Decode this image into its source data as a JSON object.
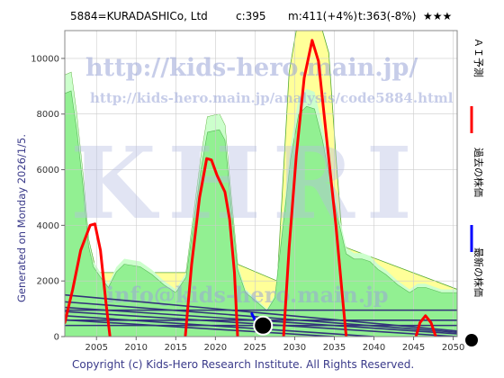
{
  "header": {
    "title": "5884=KURADASHICo,  Ltd",
    "current": "c:395",
    "mid": "m:411(+4%)",
    "target": "t:363(-8%)",
    "stars": "★★★"
  },
  "side_label": "Generated on Monday 2026/1/5.",
  "footer": "Copyright (c) Kids-Hero Research Institute. All Rights Reserved.",
  "watermarks": {
    "url_main": "http://kids-hero.main.jp/",
    "url_page": "http://kids-hero.main.jp/analysis/code5884.html",
    "brand": "KHRI",
    "email": "info@kids-hero.main.jp"
  },
  "legend": [
    {
      "label": "ＡＩ予測",
      "color": "#ff0000",
      "marker": "line"
    },
    {
      "label": "過去の株価",
      "color": "#0000ff",
      "marker": "line"
    },
    {
      "label": "最新の株価",
      "color": "#000000",
      "marker": "dot"
    }
  ],
  "colors": {
    "plot_bg": "#ffffff",
    "band_light": "#ccffcc",
    "band_green": "#88ee88",
    "band_yellow": "#ffff99",
    "trend_lines": "#33337a",
    "ai_line": "#ff0000",
    "past_line": "#0000ff",
    "grid": "#cccccc"
  },
  "chart_data": {
    "type": "line",
    "xlim": [
      2001,
      2050.5
    ],
    "ylim": [
      0,
      11000
    ],
    "xticks": [
      2005,
      2010,
      2015,
      2020,
      2025,
      2030,
      2035,
      2040,
      2045,
      2050
    ],
    "yticks": [
      0,
      2000,
      4000,
      6000,
      8000,
      10000
    ],
    "grid": true,
    "legend_position": "right",
    "series": [
      {
        "name": "ＡＩ予測",
        "segments": [
          [
            [
              2001.0,
              500
            ],
            [
              2002,
              1700
            ],
            [
              2003,
              3100
            ],
            [
              2004.2,
              4000
            ],
            [
              2004.8,
              4050
            ],
            [
              2005.5,
              3100
            ],
            [
              2006.2,
              1200
            ],
            [
              2006.7,
              0
            ]
          ],
          [
            [
              2016.2,
              0
            ],
            [
              2017,
              2600
            ],
            [
              2018,
              5000
            ],
            [
              2018.9,
              6400
            ],
            [
              2019.5,
              6350
            ],
            [
              2020.2,
              5800
            ],
            [
              2021.2,
              5200
            ],
            [
              2021.8,
              4200
            ],
            [
              2022.4,
              2300
            ],
            [
              2022.8,
              0
            ]
          ],
          [
            [
              2028.6,
              0
            ],
            [
              2029.3,
              3200
            ],
            [
              2030.2,
              6500
            ],
            [
              2031.2,
              9300
            ],
            [
              2032.2,
              10650
            ],
            [
              2033,
              9900
            ],
            [
              2034,
              7200
            ],
            [
              2035.2,
              4000
            ],
            [
              2036.1,
              1200
            ],
            [
              2036.5,
              0
            ]
          ],
          [
            [
              2045.3,
              0
            ],
            [
              2045.8,
              500
            ],
            [
              2046.5,
              750
            ],
            [
              2047.2,
              500
            ],
            [
              2047.8,
              0
            ]
          ]
        ]
      },
      {
        "name": "過去の株価",
        "points": [
          [
            2024.6,
            820
          ],
          [
            2024.9,
            650
          ],
          [
            2025.2,
            520
          ],
          [
            2025.6,
            430
          ],
          [
            2026.0,
            395
          ]
        ]
      },
      {
        "name": "最新の株価",
        "points": [
          [
            2026.0,
            395
          ]
        ]
      }
    ],
    "bands": {
      "green_upper": [
        [
          2001,
          9400
        ],
        [
          2001.8,
          9500
        ],
        [
          2002.5,
          8000
        ],
        [
          2003.3,
          5800
        ],
        [
          2004,
          3500
        ],
        [
          2004.6,
          2700
        ],
        [
          2005.5,
          2300
        ],
        [
          2006.5,
          1900
        ],
        [
          2007.5,
          2500
        ],
        [
          2008.5,
          2800
        ],
        [
          2010.5,
          2700
        ],
        [
          2012,
          2400
        ],
        [
          2013.5,
          2000
        ],
        [
          2015,
          1700
        ],
        [
          2016.3,
          2300
        ],
        [
          2017.3,
          4500
        ],
        [
          2018.2,
          6500
        ],
        [
          2019,
          7900
        ],
        [
          2020.5,
          8000
        ],
        [
          2021.2,
          7600
        ],
        [
          2022,
          5000
        ],
        [
          2022.8,
          2600
        ],
        [
          2023.8,
          1700
        ],
        [
          2025,
          1400
        ],
        [
          2026.5,
          1000
        ],
        [
          2027.5,
          1500
        ],
        [
          2028.5,
          4200
        ],
        [
          2029.5,
          6900
        ],
        [
          2030.5,
          8600
        ],
        [
          2031.5,
          8900
        ],
        [
          2032.5,
          8800
        ],
        [
          2033.5,
          7600
        ],
        [
          2034.5,
          6000
        ],
        [
          2035.5,
          4500
        ],
        [
          2036.5,
          3200
        ],
        [
          2037.5,
          3000
        ],
        [
          2038.5,
          3000
        ],
        [
          2039.5,
          2900
        ],
        [
          2040.5,
          2600
        ],
        [
          2041.5,
          2400
        ],
        [
          2043,
          2000
        ],
        [
          2044.5,
          1700
        ],
        [
          2045.5,
          1900
        ],
        [
          2046.5,
          1900
        ],
        [
          2047.5,
          1800
        ],
        [
          2048.5,
          1700
        ],
        [
          2050.5,
          1700
        ]
      ],
      "yellow_upper": [
        [
          2001,
          9400
        ],
        [
          2001.8,
          9500
        ],
        [
          2002.5,
          8000
        ],
        [
          2003.3,
          5800
        ],
        [
          2004,
          3500
        ],
        [
          2005,
          2300
        ],
        [
          2016.3,
          2300
        ],
        [
          2017.3,
          4500
        ],
        [
          2018.2,
          6500
        ],
        [
          2019,
          7900
        ],
        [
          2020.5,
          8000
        ],
        [
          2021.2,
          7600
        ],
        [
          2022,
          5000
        ],
        [
          2022.8,
          2600
        ],
        [
          2027.8,
          2000
        ],
        [
          2028.6,
          6000
        ],
        [
          2029.3,
          9500
        ],
        [
          2030.2,
          11000
        ],
        [
          2033.5,
          11000
        ],
        [
          2034.3,
          10200
        ],
        [
          2035.2,
          6500
        ],
        [
          2036,
          3500
        ],
        [
          2036.5,
          3200
        ],
        [
          2050.5,
          1700
        ]
      ]
    },
    "trend_lines": [
      [
        [
          2001,
          1500
        ],
        [
          2050.5,
          200
        ]
      ],
      [
        [
          2001,
          1250
        ],
        [
          2050.5,
          150
        ]
      ],
      [
        [
          2001,
          1050
        ],
        [
          2050.5,
          100
        ]
      ],
      [
        [
          2001,
          900
        ],
        [
          2050.5,
          0
        ]
      ],
      [
        [
          2001,
          750
        ],
        [
          2040,
          0
        ]
      ],
      [
        [
          2001,
          600
        ],
        [
          2035,
          0
        ]
      ]
    ],
    "h_lines": [
      400,
      590,
      950
    ]
  }
}
